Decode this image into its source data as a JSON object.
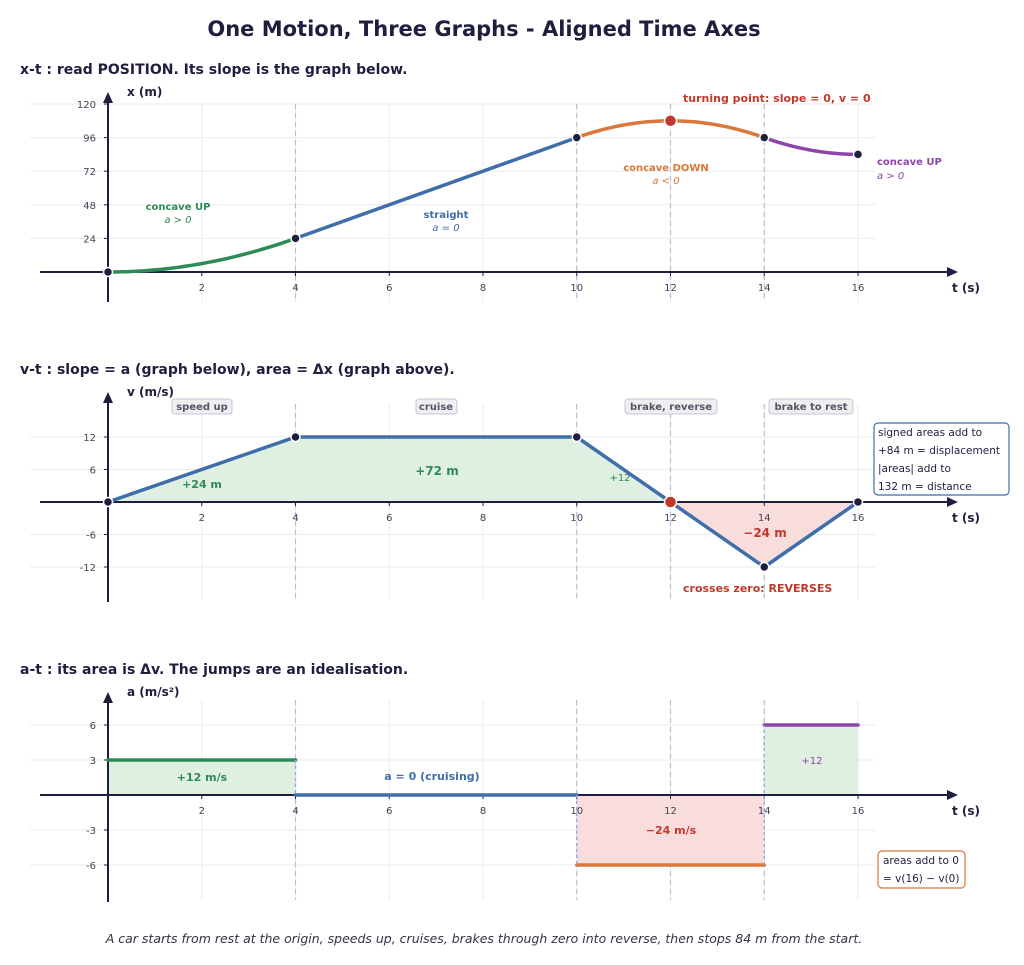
{
  "title": "One Motion, Three Graphs - Aligned Time Axes",
  "caption": "A car starts from rest at the origin, speeds up, cruises, brakes through zero into reverse, then stops 84 m from the start.",
  "colors": {
    "navy": "#1e1e3f",
    "green": "#2e8b57",
    "blue": "#3f6eaa",
    "orange": "#d9783a",
    "purple": "#8e44ad",
    "red": "#c0392b",
    "green_fill": "#dff0e2",
    "red_fill": "#f9dcdc",
    "grid": "#ebebeb",
    "dash": "#b7bce0"
  },
  "chart_data": [
    {
      "type": "line",
      "heading": "x-t :  read POSITION.  Its slope is the graph below.",
      "xlabel": "t (s)",
      "ylabel": "x (m)",
      "xlim": [
        0,
        16
      ],
      "ylim": [
        0,
        120
      ],
      "x_ticks": [
        2,
        4,
        6,
        8,
        10,
        12,
        14,
        16
      ],
      "y_ticks": [
        24,
        48,
        72,
        96,
        120
      ],
      "series": [
        {
          "color": "green",
          "x": [
            0,
            1,
            2,
            3,
            4
          ],
          "y": [
            0,
            1.5,
            6,
            13.5,
            24
          ]
        },
        {
          "color": "blue",
          "x": [
            4,
            10
          ],
          "y": [
            24,
            96
          ]
        },
        {
          "color": "orange",
          "x": [
            10,
            11,
            12,
            13,
            14
          ],
          "y": [
            96,
            105,
            108,
            105,
            96
          ]
        },
        {
          "color": "purple",
          "x": [
            14,
            15,
            16
          ],
          "y": [
            96,
            87,
            84
          ]
        }
      ],
      "points": [
        {
          "x": 0,
          "y": 0,
          "kind": "dot"
        },
        {
          "x": 4,
          "y": 24,
          "kind": "dot"
        },
        {
          "x": 10,
          "y": 96,
          "kind": "dot"
        },
        {
          "x": 12,
          "y": 108,
          "kind": "turn"
        },
        {
          "x": 14,
          "y": 96,
          "kind": "dot"
        },
        {
          "x": 16,
          "y": 84,
          "kind": "dot"
        }
      ],
      "annotations": [
        {
          "text": "concave UP",
          "sub": "a > 0",
          "color": "green"
        },
        {
          "text": "straight",
          "sub": "a = 0",
          "color": "blue"
        },
        {
          "text": "concave DOWN",
          "sub": "a < 0",
          "color": "orange"
        },
        {
          "text": "concave UP",
          "sub": "a > 0",
          "color": "purple"
        },
        {
          "text": "turning point:  slope  = 0,  v = 0",
          "color": "red"
        }
      ]
    },
    {
      "type": "line",
      "heading": "v-t :  slope  = a (graph below),  area  = Δx (graph above).",
      "xlabel": "t (s)",
      "ylabel": "v (m/s)",
      "xlim": [
        0,
        16
      ],
      "ylim": [
        -12,
        12
      ],
      "x_ticks": [
        2,
        4,
        6,
        8,
        10,
        12,
        14,
        16
      ],
      "y_ticks": [
        -12,
        -6,
        6,
        12
      ],
      "series": [
        {
          "color": "blue",
          "x": [
            0,
            4,
            10,
            12,
            14,
            16
          ],
          "y": [
            0,
            12,
            12,
            0,
            -12,
            0
          ]
        }
      ],
      "phases": [
        "speed up",
        "cruise",
        "brake, reverse",
        "brake to rest"
      ],
      "area_labels": [
        "+24  m",
        "+72  m",
        "+12",
        "−24  m"
      ],
      "crossing_label": "crosses zero:  REVERSES",
      "info_box": [
        "signed areas add to",
        "+84 m  =  displacement",
        "|areas| add to",
        "132 m  =  distance"
      ]
    },
    {
      "type": "line",
      "heading": "a-t :  its area is Δv.  The jumps are an idealisation.",
      "xlabel": "t (s)",
      "ylabel": "a (m/s²)",
      "xlim": [
        0,
        16
      ],
      "ylim": [
        -6,
        6
      ],
      "x_ticks": [
        2,
        4,
        6,
        8,
        10,
        12,
        14,
        16
      ],
      "y_ticks": [
        -6,
        -3,
        3,
        6
      ],
      "series": [
        {
          "color": "green",
          "x": [
            0,
            4
          ],
          "y": [
            3,
            3
          ]
        },
        {
          "color": "blue",
          "x": [
            4,
            10
          ],
          "y": [
            0,
            0
          ]
        },
        {
          "color": "orange",
          "x": [
            10,
            14
          ],
          "y": [
            -6,
            -6
          ]
        },
        {
          "color": "purple",
          "x": [
            14,
            16
          ],
          "y": [
            6,
            6
          ]
        }
      ],
      "area_labels": [
        "+12  m/s",
        "a = 0 (cruising)",
        "−24  m/s",
        "+12"
      ],
      "info_box": [
        "areas add to 0",
        " =  v(16) − v(0)"
      ]
    }
  ]
}
